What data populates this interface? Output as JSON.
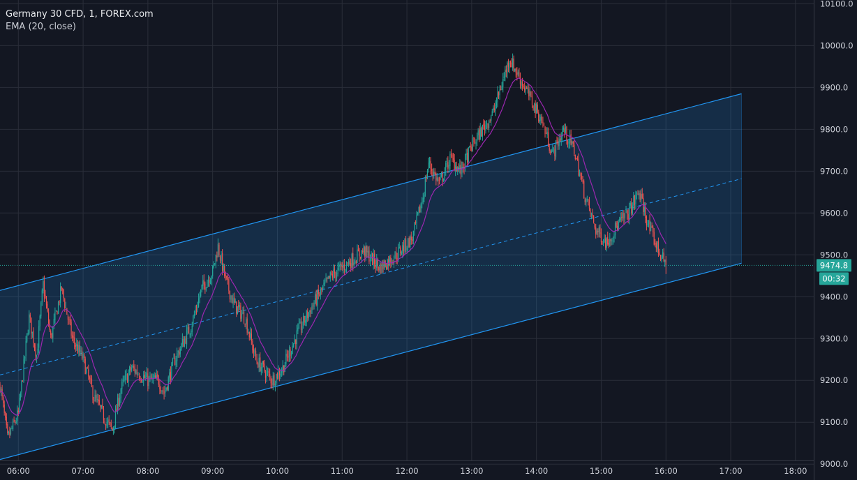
{
  "legend": {
    "symbol_line": "Germany 30 CFD, 1, FOREX.com",
    "indicator_line": "EMA (20, close)"
  },
  "colors": {
    "background": "#131722",
    "grid": "#2a2e39",
    "channel": "#2196f3",
    "channel_fill": "rgba(33,150,243,0.18)",
    "candle_up": "#26a69a",
    "candle_down": "#ef5350",
    "ema": "#9c27b0",
    "last_price": "#26a69a"
  },
  "price_badge": {
    "price": "9474.8",
    "countdown": "00:32"
  },
  "chart_data": {
    "type": "candlestick",
    "title": "Germany 30 CFD, 1, FOREX.com",
    "timeframe": "1 minute",
    "y_ticks": [
      "10100.0",
      "10000.0",
      "9900.0",
      "9800.0",
      "9700.0",
      "9600.0",
      "9500.0",
      "9400.0",
      "9300.0",
      "9200.0",
      "9100.0",
      "9000.0"
    ],
    "x_ticks": [
      "06:00",
      "07:00",
      "08:00",
      "09:00",
      "10:00",
      "11:00",
      "12:00",
      "13:00",
      "14:00",
      "15:00",
      "16:00",
      "17:00",
      "18:00"
    ],
    "ylim": [
      8962,
      10109
    ],
    "xlim": [
      "05:43",
      "18:57"
    ],
    "grid": true,
    "last_price": 9474.8,
    "price_path": [
      [
        "05:43",
        9190
      ],
      [
        "05:50",
        9060
      ],
      [
        "06:00",
        9120
      ],
      [
        "06:10",
        9350
      ],
      [
        "06:17",
        9260
      ],
      [
        "06:23",
        9430
      ],
      [
        "06:30",
        9300
      ],
      [
        "06:40",
        9420
      ],
      [
        "06:50",
        9300
      ],
      [
        "07:00",
        9250
      ],
      [
        "07:10",
        9160
      ],
      [
        "07:20",
        9110
      ],
      [
        "07:27",
        9080
      ],
      [
        "07:35",
        9180
      ],
      [
        "07:45",
        9230
      ],
      [
        "08:00",
        9200
      ],
      [
        "08:10",
        9200
      ],
      [
        "08:15",
        9170
      ],
      [
        "08:25",
        9250
      ],
      [
        "08:40",
        9330
      ],
      [
        "08:50",
        9420
      ],
      [
        "09:00",
        9460
      ],
      [
        "09:05",
        9520
      ],
      [
        "09:12",
        9440
      ],
      [
        "09:20",
        9380
      ],
      [
        "09:30",
        9350
      ],
      [
        "09:40",
        9250
      ],
      [
        "09:55",
        9200
      ],
      [
        "10:05",
        9230
      ],
      [
        "10:20",
        9320
      ],
      [
        "10:35",
        9390
      ],
      [
        "10:50",
        9450
      ],
      [
        "11:05",
        9480
      ],
      [
        "11:20",
        9510
      ],
      [
        "11:35",
        9470
      ],
      [
        "11:50",
        9500
      ],
      [
        "12:05",
        9540
      ],
      [
        "12:15",
        9640
      ],
      [
        "12:20",
        9720
      ],
      [
        "12:30",
        9670
      ],
      [
        "12:40",
        9730
      ],
      [
        "12:50",
        9700
      ],
      [
        "13:00",
        9760
      ],
      [
        "13:20",
        9840
      ],
      [
        "13:35",
        9970
      ],
      [
        "13:45",
        9920
      ],
      [
        "13:55",
        9870
      ],
      [
        "14:05",
        9820
      ],
      [
        "14:15",
        9740
      ],
      [
        "14:25",
        9800
      ],
      [
        "14:35",
        9750
      ],
      [
        "14:45",
        9640
      ],
      [
        "14:55",
        9560
      ],
      [
        "15:05",
        9530
      ],
      [
        "15:15",
        9570
      ],
      [
        "15:25",
        9600
      ],
      [
        "15:35",
        9650
      ],
      [
        "15:45",
        9560
      ],
      [
        "15:55",
        9500
      ],
      [
        "16:00",
        9474.8
      ]
    ],
    "regression_channel": {
      "start_time": "05:43",
      "end_time": "17:10",
      "upper": [
        9415,
        9885
      ],
      "middle": [
        9213,
        9682
      ],
      "lower": [
        9011,
        9480
      ]
    },
    "ema": {
      "name": "EMA (20, close)",
      "period": 20
    }
  }
}
